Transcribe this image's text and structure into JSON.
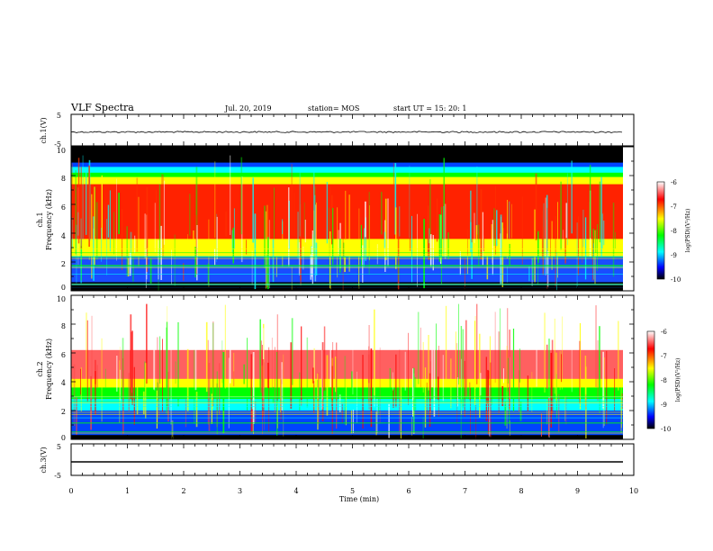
{
  "header": {
    "title": "VLF Spectra",
    "date": "Jul. 20, 2019",
    "station": "station= MOS",
    "start_ut": "start UT =  15: 20: 1"
  },
  "chart_data": [
    {
      "type": "line",
      "panel": "ch1-waveform",
      "ylabel": "ch.1(V)",
      "ylim": [
        -5,
        5
      ],
      "ytick_labels": [
        "5",
        "-5"
      ],
      "xlim": [
        0,
        10
      ],
      "series": [
        {
          "values": [
            -0.6,
            -0.6
          ]
        }
      ]
    },
    {
      "type": "heatmap",
      "panel": "ch1-spectrogram",
      "ylabel_line1": "ch.1",
      "ylabel_line2": "Frequency (kHz)",
      "ylim": [
        0,
        10
      ],
      "ytick_labels": [
        "0",
        "2",
        "4",
        "6",
        "8",
        "10"
      ],
      "xlim": [
        0,
        9.85
      ],
      "colorbar": {
        "label": "log(PSD)(V²/Hz)",
        "range": [
          -10,
          -6
        ],
        "tick_labels": [
          "-6",
          "-7",
          "-8",
          "-9",
          "-10"
        ],
        "colors": [
          "#ffffff",
          "#ff0000",
          "#ffff00",
          "#00ff00",
          "#00ffff",
          "#0000ff",
          "#000000"
        ]
      }
    },
    {
      "type": "heatmap",
      "panel": "ch2-spectrogram",
      "ylabel_line1": "ch.2",
      "ylabel_line2": "Frequency (kHz)",
      "ylim": [
        0,
        10
      ],
      "ytick_labels": [
        "0",
        "2",
        "4",
        "6",
        "8",
        "10"
      ],
      "xlim": [
        0,
        9.85
      ],
      "colorbar": {
        "label": "log(PSD)(V²/Hz)",
        "range": [
          -10,
          -6
        ],
        "tick_labels": [
          "-6",
          "-7",
          "-8",
          "-9",
          "-10"
        ],
        "colors": [
          "#ffffff",
          "#ff0000",
          "#ffff00",
          "#00ff00",
          "#00ffff",
          "#0000ff",
          "#000000"
        ]
      }
    },
    {
      "type": "line",
      "panel": "ch3-waveform",
      "ylabel": "ch.3(V)",
      "ylim": [
        -5,
        5
      ],
      "ytick_labels": [
        "5",
        "-5"
      ],
      "xlim": [
        0,
        10
      ],
      "series": [
        {
          "values": [
            -1.0,
            -1.0
          ]
        }
      ]
    }
  ],
  "xaxis": {
    "label": "Time (min)",
    "tick_labels": [
      "0",
      "1",
      "2",
      "3",
      "4",
      "5",
      "6",
      "7",
      "8",
      "9",
      "10"
    ],
    "range": [
      0,
      10
    ]
  }
}
